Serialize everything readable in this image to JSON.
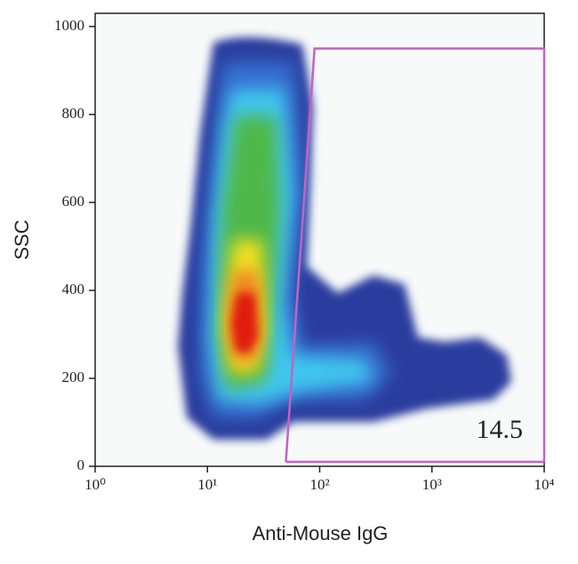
{
  "chart_data": {
    "type": "density",
    "x_label": "Anti-Mouse IgG",
    "y_label": "SSC",
    "xscale": "log",
    "xlim": [
      1,
      10000
    ],
    "xticks": [
      {
        "value": 1,
        "label": "10⁰"
      },
      {
        "value": 10,
        "label": "10¹"
      },
      {
        "value": 100,
        "label": "10²"
      },
      {
        "value": 1000,
        "label": "10³"
      },
      {
        "value": 10000,
        "label": "10⁴"
      }
    ],
    "ylim": [
      0,
      1030
    ],
    "yticks": [
      0,
      200,
      400,
      600,
      800,
      1000
    ],
    "gate": {
      "x": [
        50,
        90,
        10000,
        10000,
        50
      ],
      "y": [
        10,
        950,
        950,
        10,
        10
      ],
      "color": "#c462c4",
      "label": 14.5
    }
  }
}
